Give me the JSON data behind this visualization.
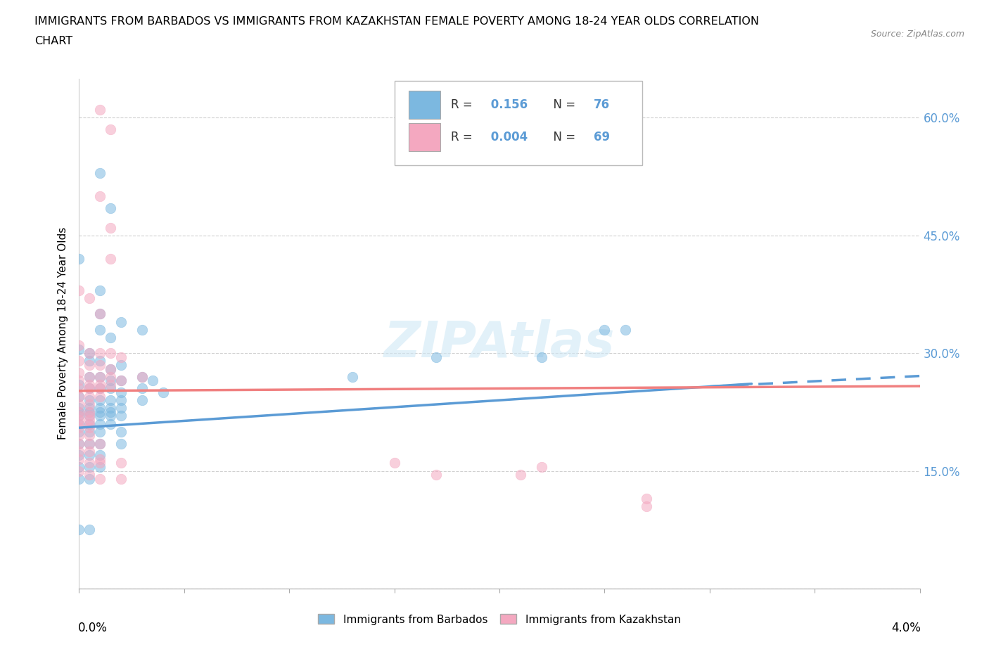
{
  "title_line1": "IMMIGRANTS FROM BARBADOS VS IMMIGRANTS FROM KAZAKHSTAN FEMALE POVERTY AMONG 18-24 YEAR OLDS CORRELATION",
  "title_line2": "CHART",
  "source_text": "Source: ZipAtlas.com",
  "ylabel": "Female Poverty Among 18-24 Year Olds",
  "right_ytick_labels": [
    "",
    "15.0%",
    "30.0%",
    "45.0%",
    "60.0%"
  ],
  "right_ytick_values": [
    0.0,
    0.15,
    0.3,
    0.45,
    0.6
  ],
  "xlim": [
    0.0,
    0.04
  ],
  "ylim": [
    0.0,
    0.65
  ],
  "barbados_color": "#7cb8e0",
  "kazakhstan_color": "#f4a8c0",
  "legend_label_1": "Immigrants from Barbados",
  "legend_label_2": "Immigrants from Kazakhstan",
  "watermark": "ZIPAtlas",
  "trend_color_blue": "#5b9bd5",
  "trend_color_pink": "#f08080",
  "barbados_scatter": [
    [
      0.001,
      0.53
    ],
    [
      0.0015,
      0.485
    ],
    [
      0.0,
      0.42
    ],
    [
      0.001,
      0.38
    ],
    [
      0.001,
      0.35
    ],
    [
      0.0,
      0.305
    ],
    [
      0.0005,
      0.3
    ],
    [
      0.001,
      0.33
    ],
    [
      0.002,
      0.34
    ],
    [
      0.0015,
      0.32
    ],
    [
      0.003,
      0.33
    ],
    [
      0.0005,
      0.29
    ],
    [
      0.001,
      0.29
    ],
    [
      0.0015,
      0.28
    ],
    [
      0.002,
      0.285
    ],
    [
      0.0005,
      0.27
    ],
    [
      0.001,
      0.27
    ],
    [
      0.0015,
      0.265
    ],
    [
      0.002,
      0.265
    ],
    [
      0.003,
      0.27
    ],
    [
      0.0035,
      0.265
    ],
    [
      0.025,
      0.33
    ],
    [
      0.026,
      0.33
    ],
    [
      0.017,
      0.295
    ],
    [
      0.022,
      0.295
    ],
    [
      0.013,
      0.27
    ],
    [
      0.0,
      0.26
    ],
    [
      0.0005,
      0.255
    ],
    [
      0.001,
      0.255
    ],
    [
      0.0015,
      0.255
    ],
    [
      0.002,
      0.25
    ],
    [
      0.003,
      0.255
    ],
    [
      0.004,
      0.25
    ],
    [
      0.0,
      0.245
    ],
    [
      0.0005,
      0.24
    ],
    [
      0.001,
      0.24
    ],
    [
      0.0015,
      0.24
    ],
    [
      0.002,
      0.24
    ],
    [
      0.003,
      0.24
    ],
    [
      0.0,
      0.23
    ],
    [
      0.0005,
      0.23
    ],
    [
      0.001,
      0.23
    ],
    [
      0.0015,
      0.23
    ],
    [
      0.002,
      0.23
    ],
    [
      0.0,
      0.225
    ],
    [
      0.0005,
      0.225
    ],
    [
      0.001,
      0.225
    ],
    [
      0.0015,
      0.225
    ],
    [
      0.0,
      0.22
    ],
    [
      0.0005,
      0.22
    ],
    [
      0.001,
      0.22
    ],
    [
      0.0015,
      0.22
    ],
    [
      0.002,
      0.22
    ],
    [
      0.0,
      0.21
    ],
    [
      0.0005,
      0.21
    ],
    [
      0.001,
      0.21
    ],
    [
      0.0015,
      0.21
    ],
    [
      0.0,
      0.2
    ],
    [
      0.0005,
      0.2
    ],
    [
      0.001,
      0.2
    ],
    [
      0.002,
      0.2
    ],
    [
      0.0,
      0.185
    ],
    [
      0.0005,
      0.185
    ],
    [
      0.001,
      0.185
    ],
    [
      0.002,
      0.185
    ],
    [
      0.0,
      0.17
    ],
    [
      0.0005,
      0.17
    ],
    [
      0.001,
      0.17
    ],
    [
      0.0,
      0.155
    ],
    [
      0.0005,
      0.155
    ],
    [
      0.001,
      0.155
    ],
    [
      0.0,
      0.14
    ],
    [
      0.0005,
      0.14
    ],
    [
      0.0,
      0.075
    ],
    [
      0.0005,
      0.075
    ]
  ],
  "kazakhstan_scatter": [
    [
      0.001,
      0.61
    ],
    [
      0.0015,
      0.585
    ],
    [
      0.001,
      0.5
    ],
    [
      0.0015,
      0.46
    ],
    [
      0.0015,
      0.42
    ],
    [
      0.0,
      0.38
    ],
    [
      0.0005,
      0.37
    ],
    [
      0.001,
      0.35
    ],
    [
      0.0,
      0.31
    ],
    [
      0.0005,
      0.3
    ],
    [
      0.001,
      0.3
    ],
    [
      0.0015,
      0.3
    ],
    [
      0.002,
      0.295
    ],
    [
      0.0,
      0.29
    ],
    [
      0.0005,
      0.285
    ],
    [
      0.001,
      0.285
    ],
    [
      0.0015,
      0.28
    ],
    [
      0.0,
      0.275
    ],
    [
      0.0005,
      0.27
    ],
    [
      0.001,
      0.27
    ],
    [
      0.0015,
      0.27
    ],
    [
      0.0,
      0.265
    ],
    [
      0.0005,
      0.26
    ],
    [
      0.001,
      0.26
    ],
    [
      0.0015,
      0.26
    ],
    [
      0.002,
      0.265
    ],
    [
      0.003,
      0.27
    ],
    [
      0.0,
      0.255
    ],
    [
      0.0005,
      0.255
    ],
    [
      0.001,
      0.255
    ],
    [
      0.0,
      0.245
    ],
    [
      0.0005,
      0.245
    ],
    [
      0.001,
      0.245
    ],
    [
      0.0,
      0.235
    ],
    [
      0.0005,
      0.235
    ],
    [
      0.0,
      0.225
    ],
    [
      0.0005,
      0.225
    ],
    [
      0.0,
      0.22
    ],
    [
      0.0005,
      0.22
    ],
    [
      0.0,
      0.215
    ],
    [
      0.0005,
      0.215
    ],
    [
      0.0,
      0.21
    ],
    [
      0.0005,
      0.21
    ],
    [
      0.0,
      0.205
    ],
    [
      0.0005,
      0.205
    ],
    [
      0.0,
      0.195
    ],
    [
      0.0005,
      0.195
    ],
    [
      0.0,
      0.185
    ],
    [
      0.0005,
      0.185
    ],
    [
      0.001,
      0.185
    ],
    [
      0.0,
      0.175
    ],
    [
      0.0005,
      0.175
    ],
    [
      0.001,
      0.165
    ],
    [
      0.022,
      0.155
    ],
    [
      0.027,
      0.115
    ],
    [
      0.027,
      0.105
    ],
    [
      0.0,
      0.165
    ],
    [
      0.0005,
      0.16
    ],
    [
      0.001,
      0.16
    ],
    [
      0.002,
      0.16
    ],
    [
      0.015,
      0.16
    ],
    [
      0.0,
      0.15
    ],
    [
      0.0005,
      0.145
    ],
    [
      0.001,
      0.14
    ],
    [
      0.002,
      0.14
    ],
    [
      0.017,
      0.145
    ],
    [
      0.021,
      0.145
    ]
  ]
}
